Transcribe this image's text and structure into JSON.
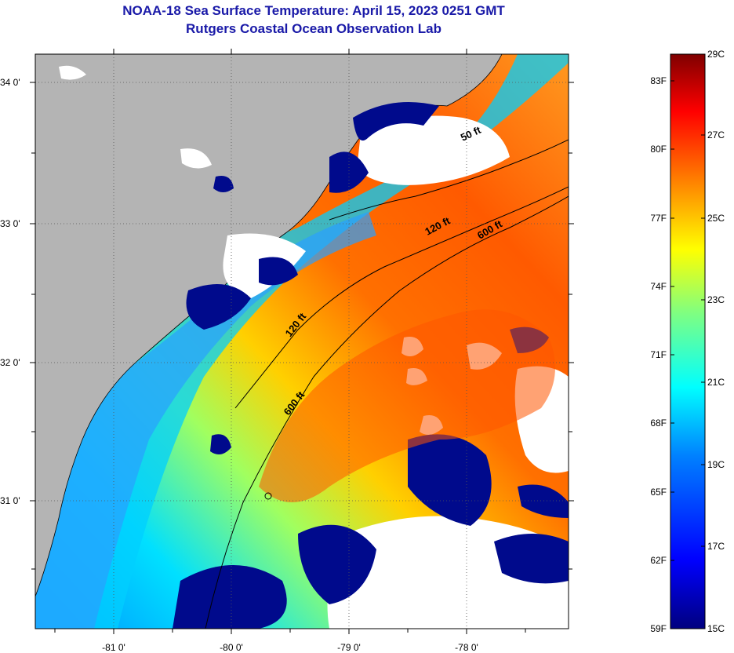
{
  "header": {
    "title": "NOAA-18 Sea Surface Temperature:  April 15, 2023 0251 GMT",
    "subtitle": "Rutgers Coastal Ocean Observation Lab"
  },
  "map": {
    "lat_labels": [
      "34 0'",
      "33 0'",
      "32 0'",
      "31 0'"
    ],
    "lon_labels": [
      "-81 0'",
      "-80 0'",
      "-79 0'",
      "-78 0'"
    ],
    "contour_labels": [
      "50 ft",
      "120 ft",
      "600 ft",
      "120 ft",
      "600 ft"
    ],
    "colors": {
      "land": "#b4b4b4",
      "cloud": "#ffffff",
      "frame": "#000000"
    }
  },
  "colorbar": {
    "fahrenheit": [
      "83F",
      "80F",
      "77F",
      "74F",
      "71F",
      "68F",
      "65F",
      "62F",
      "59F"
    ],
    "celsius": [
      "29C",
      "27C",
      "25C",
      "23C",
      "21C",
      "19C",
      "17C",
      "15C"
    ],
    "colors": [
      "#00007f",
      "#0000ff",
      "#0080ff",
      "#00ffff",
      "#80ff80",
      "#ffff00",
      "#ff8000",
      "#ff0000",
      "#7f0000"
    ]
  }
}
